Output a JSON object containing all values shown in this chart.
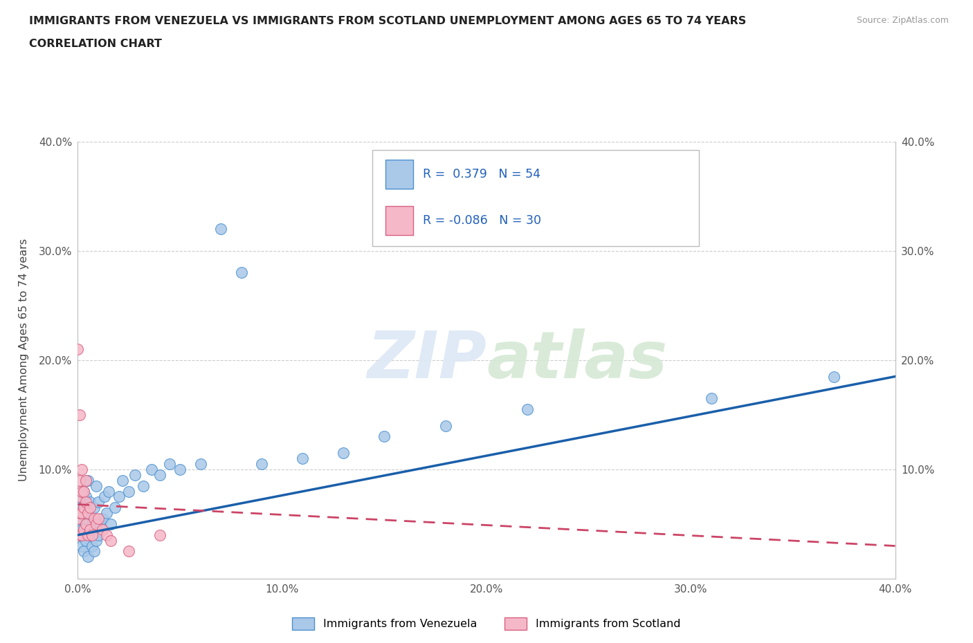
{
  "title_line1": "IMMIGRANTS FROM VENEZUELA VS IMMIGRANTS FROM SCOTLAND UNEMPLOYMENT AMONG AGES 65 TO 74 YEARS",
  "title_line2": "CORRELATION CHART",
  "source_text": "Source: ZipAtlas.com",
  "ylabel": "Unemployment Among Ages 65 to 74 years",
  "xlim": [
    0.0,
    0.4
  ],
  "ylim": [
    0.0,
    0.4
  ],
  "xticks": [
    0.0,
    0.1,
    0.2,
    0.3,
    0.4
  ],
  "yticks": [
    0.0,
    0.1,
    0.2,
    0.3,
    0.4
  ],
  "xtick_labels": [
    "0.0%",
    "10.0%",
    "20.0%",
    "30.0%",
    "40.0%"
  ],
  "ytick_labels": [
    "",
    "10.0%",
    "20.0%",
    "30.0%",
    "40.0%"
  ],
  "right_ytick_labels": [
    "",
    "10.0%",
    "20.0%",
    "30.0%",
    "40.0%"
  ],
  "venezuela_color": "#aac8e8",
  "venezuela_edge_color": "#4a90d0",
  "scotland_color": "#f5b8c8",
  "scotland_edge_color": "#d86080",
  "trend_venezuela_color": "#1a5faa",
  "trend_scotland_color": "#cc4466",
  "R_venezuela": 0.379,
  "N_venezuela": 54,
  "R_scotland": -0.086,
  "N_scotland": 30,
  "venezuela_x": [
    0.0,
    0.001,
    0.001,
    0.001,
    0.002,
    0.002,
    0.002,
    0.003,
    0.003,
    0.003,
    0.004,
    0.004,
    0.004,
    0.005,
    0.005,
    0.005,
    0.005,
    0.006,
    0.006,
    0.007,
    0.007,
    0.008,
    0.008,
    0.009,
    0.009,
    0.01,
    0.01,
    0.011,
    0.012,
    0.013,
    0.014,
    0.015,
    0.016,
    0.018,
    0.02,
    0.022,
    0.025,
    0.028,
    0.032,
    0.036,
    0.04,
    0.045,
    0.05,
    0.06,
    0.07,
    0.08,
    0.09,
    0.11,
    0.13,
    0.15,
    0.18,
    0.22,
    0.31,
    0.37
  ],
  "venezuela_y": [
    0.05,
    0.04,
    0.055,
    0.07,
    0.03,
    0.045,
    0.065,
    0.025,
    0.06,
    0.08,
    0.035,
    0.055,
    0.075,
    0.02,
    0.04,
    0.06,
    0.09,
    0.045,
    0.07,
    0.03,
    0.05,
    0.025,
    0.065,
    0.035,
    0.085,
    0.04,
    0.07,
    0.05,
    0.055,
    0.075,
    0.06,
    0.08,
    0.05,
    0.065,
    0.075,
    0.09,
    0.08,
    0.095,
    0.085,
    0.1,
    0.095,
    0.105,
    0.1,
    0.105,
    0.32,
    0.28,
    0.105,
    0.11,
    0.115,
    0.13,
    0.14,
    0.155,
    0.165,
    0.185
  ],
  "scotland_x": [
    0.0,
    0.0,
    0.0,
    0.001,
    0.001,
    0.001,
    0.001,
    0.002,
    0.002,
    0.002,
    0.002,
    0.003,
    0.003,
    0.003,
    0.004,
    0.004,
    0.004,
    0.005,
    0.005,
    0.006,
    0.006,
    0.007,
    0.008,
    0.009,
    0.01,
    0.012,
    0.014,
    0.016,
    0.025,
    0.04
  ],
  "scotland_y": [
    0.04,
    0.055,
    0.21,
    0.06,
    0.075,
    0.09,
    0.15,
    0.04,
    0.06,
    0.08,
    0.1,
    0.045,
    0.065,
    0.08,
    0.05,
    0.07,
    0.09,
    0.04,
    0.06,
    0.045,
    0.065,
    0.04,
    0.055,
    0.05,
    0.055,
    0.045,
    0.04,
    0.035,
    0.025,
    0.04
  ],
  "trend_v_x0": 0.0,
  "trend_v_y0": 0.04,
  "trend_v_x1": 0.4,
  "trend_v_y1": 0.185,
  "trend_s_x0": 0.0,
  "trend_s_y0": 0.068,
  "trend_s_x1": 0.4,
  "trend_s_y1": 0.03
}
